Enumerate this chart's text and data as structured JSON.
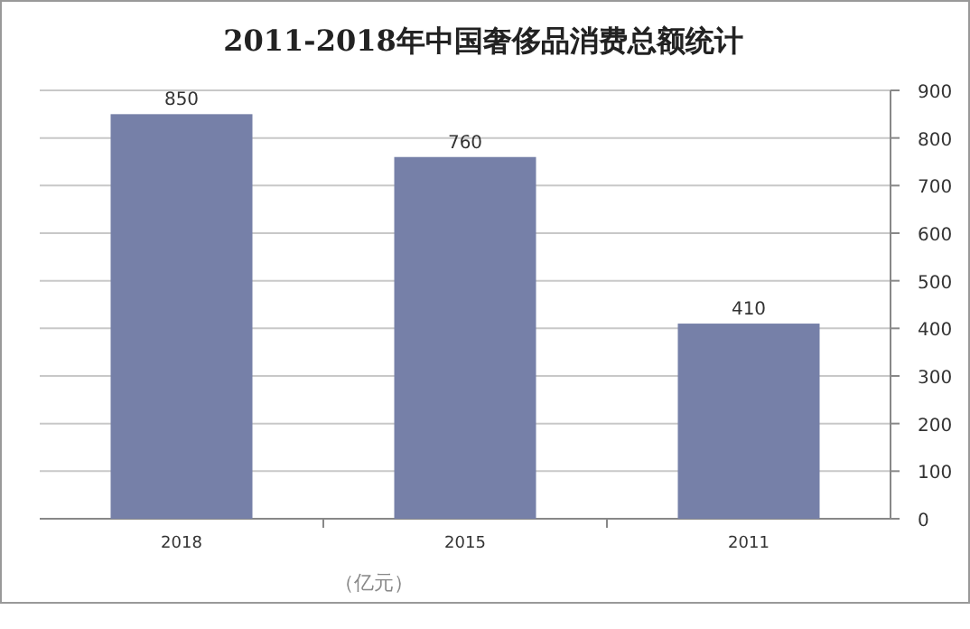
{
  "chart_data": {
    "type": "bar",
    "title": "2011-2018年中国奢侈品消费总额统计",
    "categories": [
      "2018",
      "2015",
      "2011"
    ],
    "values": [
      850,
      760,
      410
    ],
    "color": "#7680a8",
    "ylim": [
      0,
      900
    ],
    "yticks": [
      0,
      100,
      200,
      300,
      400,
      500,
      600,
      700,
      800,
      900
    ],
    "grid": "y",
    "data_labels": true,
    "annotations": [
      "（亿元）"
    ]
  }
}
